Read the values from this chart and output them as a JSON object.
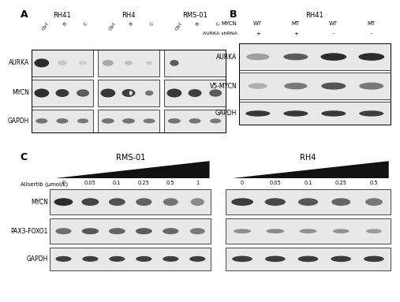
{
  "bg_color": "#ffffff",
  "panel_A": {
    "title": "A",
    "cell_lines": [
      "RH41",
      "RH4",
      "RMS-01"
    ],
    "col_labels": [
      "Ctrl",
      "B",
      "C"
    ],
    "row_labels": [
      "AURKA",
      "MYCN",
      "GAPDH"
    ]
  },
  "panel_B": {
    "title": "B",
    "cell_line": "RH41",
    "header1_cols": [
      "WT",
      "MT",
      "WT",
      "MT"
    ],
    "header2_cols": [
      "+",
      "+",
      "-",
      "-"
    ],
    "row_labels": [
      "AURKA",
      "V5-MYCN",
      "GAPDH"
    ]
  },
  "panel_C": {
    "title": "C",
    "cell_lines": [
      "RMS-01",
      "RH4"
    ],
    "dose_label": "Alisertib (μmol/L)",
    "doses_rms01": [
      "0",
      "0.05",
      "0.1",
      "0.25",
      "0.5",
      "1"
    ],
    "doses_rh4": [
      "0",
      "0.05",
      "0.1",
      "0.25",
      "0.5"
    ],
    "row_labels": [
      "MYCN",
      "PAX3-FOXO1",
      "GAPDH"
    ]
  },
  "text_color": "#000000",
  "border_color": "#000000",
  "wb_bg_light": "#e8e8e8",
  "wb_bg_lighter": "#f0f0f0",
  "band_very_dark": "#1a1a1a",
  "band_dark": "#2d2d2d",
  "band_mid_dark": "#444444",
  "band_mid": "#666666",
  "band_light": "#999999",
  "band_very_light": "#bbbbbb"
}
